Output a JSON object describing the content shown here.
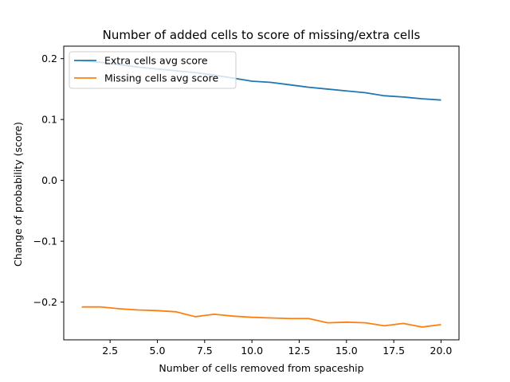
{
  "chart_data": {
    "type": "line",
    "title": "Number of added cells to score of missing/extra cells",
    "xlabel": "Number of cells removed from spaceship",
    "ylabel": "Change of probability (score)",
    "xlim": [
      0.05,
      20.95
    ],
    "ylim": [
      -0.262,
      0.2205
    ],
    "xticks": [
      2.5,
      5.0,
      7.5,
      10.0,
      12.5,
      15.0,
      17.5,
      20.0
    ],
    "xtick_labels": [
      "2.5",
      "5.0",
      "7.5",
      "10.0",
      "12.5",
      "15.0",
      "17.5",
      "20.0"
    ],
    "yticks": [
      0.2,
      0.1,
      0.0,
      -0.1,
      -0.2
    ],
    "ytick_labels": [
      "0.2",
      "0.1",
      "0.0",
      "−0.1",
      "−0.2"
    ],
    "legend_position": "top-left",
    "grid": false,
    "x": [
      1,
      2,
      3,
      4,
      5,
      6,
      7,
      8,
      9,
      10,
      11,
      12,
      13,
      14,
      15,
      16,
      17,
      18,
      19,
      20
    ],
    "series": [
      {
        "name": "Extra cells avg score",
        "color": "#1f77b4",
        "values": [
          0.196,
          0.194,
          0.19,
          0.186,
          0.183,
          0.18,
          0.177,
          0.173,
          0.168,
          0.163,
          0.161,
          0.157,
          0.153,
          0.15,
          0.147,
          0.144,
          0.139,
          0.137,
          0.134,
          0.132
        ]
      },
      {
        "name": "Missing cells avg score",
        "color": "#ff7f0e",
        "values": [
          -0.208,
          -0.208,
          -0.211,
          -0.213,
          -0.214,
          -0.216,
          -0.224,
          -0.22,
          -0.223,
          -0.225,
          -0.226,
          -0.227,
          -0.227,
          -0.234,
          -0.233,
          -0.234,
          -0.239,
          -0.235,
          -0.241,
          -0.237
        ]
      }
    ]
  }
}
